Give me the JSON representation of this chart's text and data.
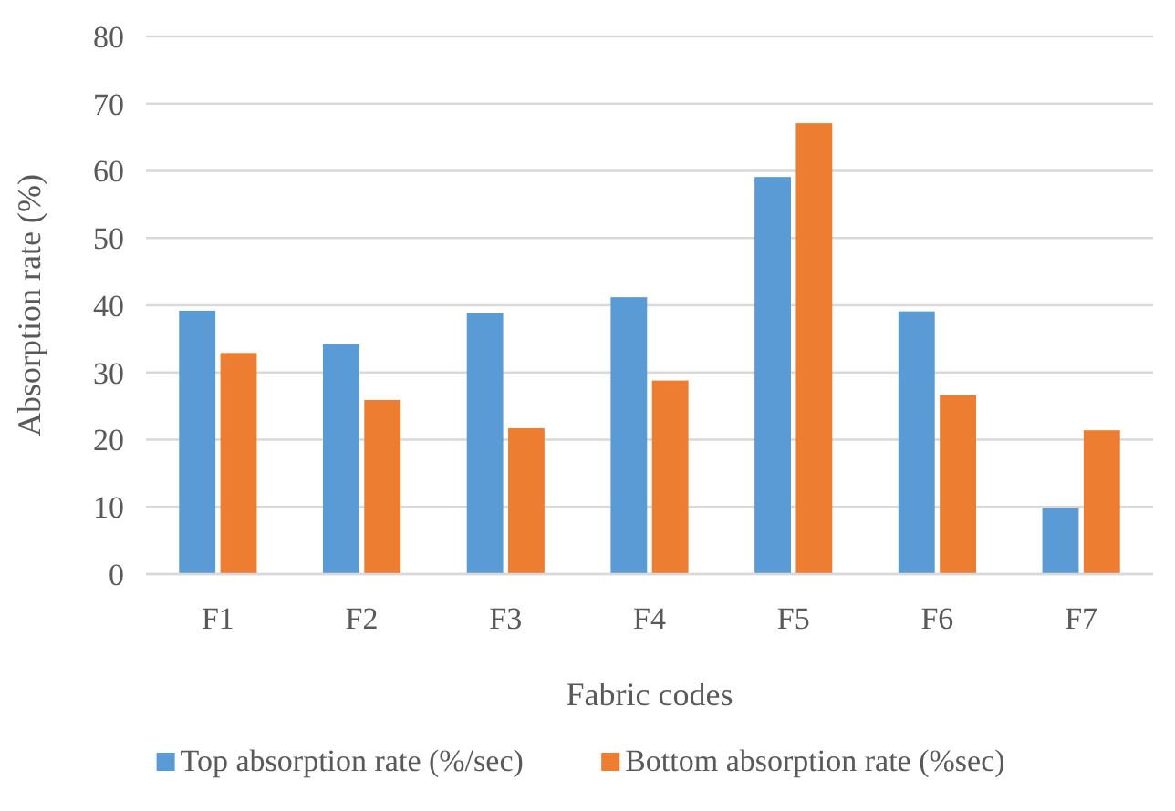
{
  "chart_data": {
    "type": "bar",
    "xlabel": "Fabric codes",
    "ylabel": "Absorption rate (%)",
    "categories": [
      "F1",
      "F2",
      "F3",
      "F4",
      "F5",
      "F6",
      "F7"
    ],
    "series": [
      {
        "name": "Top absorption rate (%/sec)",
        "color": "#5b9bd5",
        "values": [
          39.2,
          34.2,
          38.8,
          41.2,
          59.1,
          39.1,
          9.8
        ]
      },
      {
        "name": "Bottom absorption rate (%sec)",
        "color": "#ed7d31",
        "values": [
          32.9,
          25.9,
          21.7,
          28.8,
          67.1,
          26.6,
          21.4
        ]
      }
    ],
    "ylim": [
      0,
      80
    ],
    "yticks": [
      0,
      10,
      20,
      30,
      40,
      50,
      60,
      70,
      80
    ],
    "grid": "y",
    "legend": "bottom"
  }
}
